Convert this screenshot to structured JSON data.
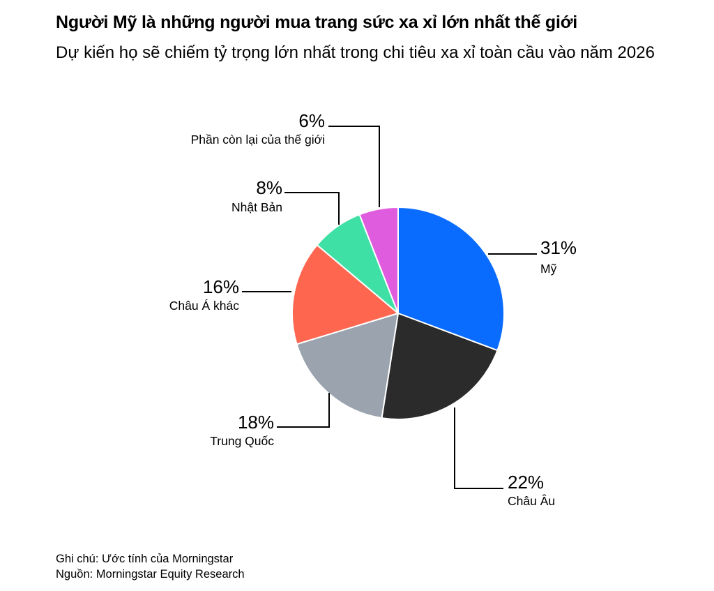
{
  "header": {
    "title": "Người Mỹ là những người mua trang sức xa xỉ lớn nhất thế giới",
    "subtitle": "Dự kiến họ sẽ chiếm tỷ trọng lớn nhất trong chi tiêu xa xỉ toàn cầu vào năm 2026"
  },
  "footer": {
    "note": "Ghi chú: Ước tính của Morningstar",
    "source": "Nguồn: Morningstar Equity Research"
  },
  "chart_data": {
    "type": "pie",
    "slices": [
      {
        "label": "Mỹ",
        "value": 31,
        "display": "31%",
        "color": "#0a6cff"
      },
      {
        "label": "Châu Âu",
        "value": 22,
        "display": "22%",
        "color": "#2b2b2b"
      },
      {
        "label": "Trung Quốc",
        "value": 18,
        "display": "18%",
        "color": "#9aa3ae"
      },
      {
        "label": "Châu Á khác",
        "value": 16,
        "display": "16%",
        "color": "#ff6650"
      },
      {
        "label": "Nhật Bản",
        "value": 8,
        "display": "8%",
        "color": "#3ee0a6"
      },
      {
        "label": "Phần còn lại của thế giới",
        "value": 6,
        "display": "6%",
        "color": "#e05cdf"
      }
    ],
    "start_angle": "12 o'clock",
    "direction": "clockwise",
    "legend": "none",
    "labels": "outside with leader lines"
  }
}
